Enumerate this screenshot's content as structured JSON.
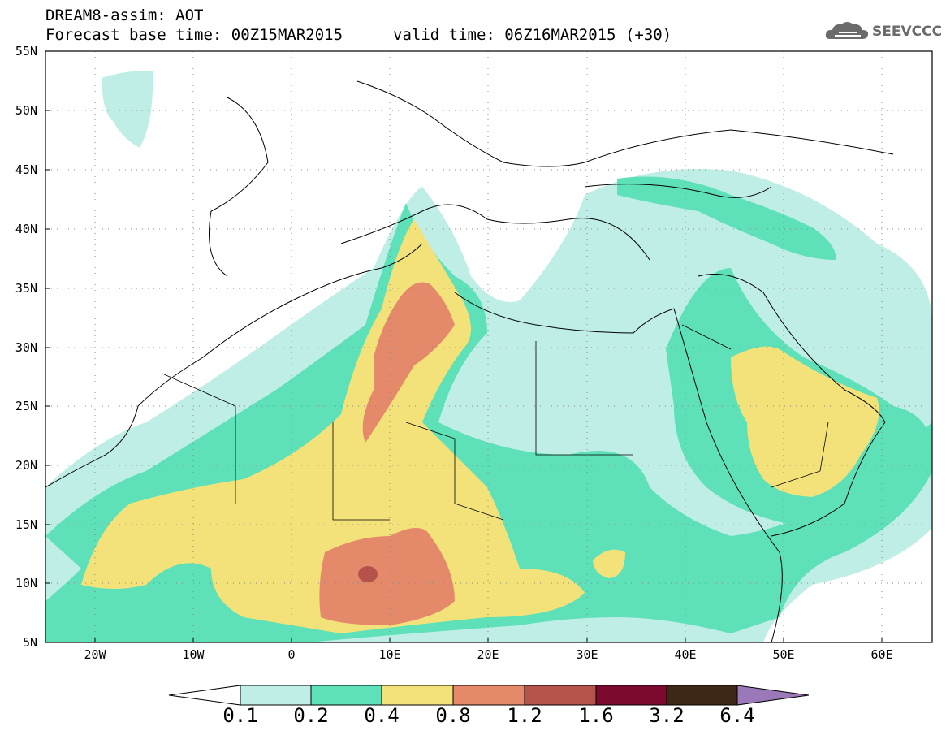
{
  "header": {
    "model_title": "DREAM8-assim: AOT",
    "base_time": "Forecast base time: 00Z15MAR2015",
    "valid_time": "valid time: 06Z16MAR2015 (+30)",
    "logo_text": "SEEVCCC"
  },
  "map": {
    "lat_range": [
      5,
      55
    ],
    "lon_range": [
      -25,
      65
    ],
    "lat_labels": [
      "55N",
      "50N",
      "45N",
      "40N",
      "35N",
      "30N",
      "25N",
      "20N",
      "15N",
      "10N",
      "5N"
    ],
    "lon_labels": [
      "20W",
      "10W",
      "0",
      "10E",
      "20E",
      "30E",
      "40E",
      "50E",
      "60E"
    ]
  },
  "colorbar": {
    "labels": [
      "0.1",
      "0.2",
      "0.4",
      "0.8",
      "1.2",
      "1.6",
      "3.2",
      "6.4"
    ],
    "colors": [
      "#ffffff",
      "#bfeee6",
      "#5ee0b8",
      "#f3e27a",
      "#e5896b",
      "#b5524b",
      "#7c0a2e",
      "#3d2815",
      "#9b78b8"
    ]
  }
}
